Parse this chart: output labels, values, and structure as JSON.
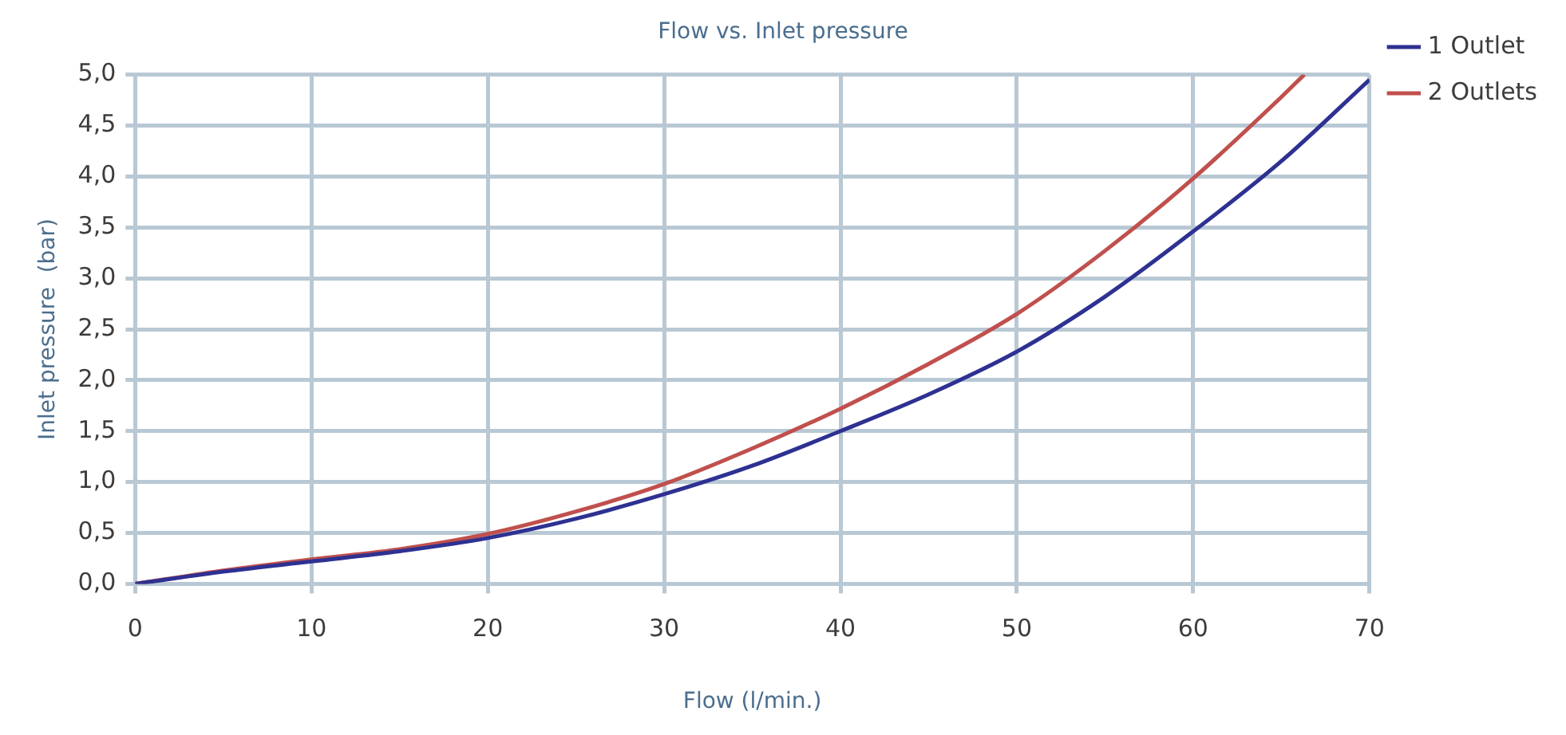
{
  "chart_data": {
    "type": "line",
    "title": "Flow vs. Inlet pressure",
    "xlabel": "Flow (l/min.)",
    "ylabel": "Inlet pressure  (bar)",
    "series": [
      {
        "name": "1 Outlet",
        "color": "#2e3192",
        "x": [
          0,
          5,
          10,
          15,
          20,
          25,
          30,
          35,
          40,
          45,
          50,
          55,
          60,
          65,
          70
        ],
        "values": [
          0,
          0.12,
          0.22,
          0.32,
          0.45,
          0.64,
          0.88,
          1.16,
          1.5,
          1.86,
          2.28,
          2.82,
          3.46,
          4.15,
          4.95
        ]
      },
      {
        "name": "2 Outlets",
        "color": "#c0504d",
        "x": [
          0,
          5,
          10,
          15,
          20,
          25,
          30,
          35,
          40,
          45,
          50,
          55,
          60,
          65,
          66.3
        ],
        "values": [
          0,
          0.13,
          0.24,
          0.34,
          0.49,
          0.71,
          0.98,
          1.33,
          1.72,
          2.16,
          2.65,
          3.27,
          3.98,
          4.78,
          5.0
        ]
      }
    ],
    "xlim": [
      0,
      70
    ],
    "xticks": [
      0,
      10,
      20,
      30,
      40,
      50,
      60,
      70
    ],
    "ylim": [
      0,
      5
    ],
    "yticks": [
      {
        "value": 0,
        "label": "0,0"
      },
      {
        "value": 0.5,
        "label": "0,5"
      },
      {
        "value": 1,
        "label": "1,0"
      },
      {
        "value": 1.5,
        "label": "1,5"
      },
      {
        "value": 2,
        "label": "2,0"
      },
      {
        "value": 2.5,
        "label": "2,5"
      },
      {
        "value": 3,
        "label": "3,0"
      },
      {
        "value": 3.5,
        "label": "3,5"
      },
      {
        "value": 4,
        "label": "4,0"
      },
      {
        "value": 4.5,
        "label": "4,5"
      },
      {
        "value": 5,
        "label": "5,0"
      }
    ],
    "grid": true,
    "legend": "right",
    "marker": "none",
    "line_style": "solid"
  }
}
